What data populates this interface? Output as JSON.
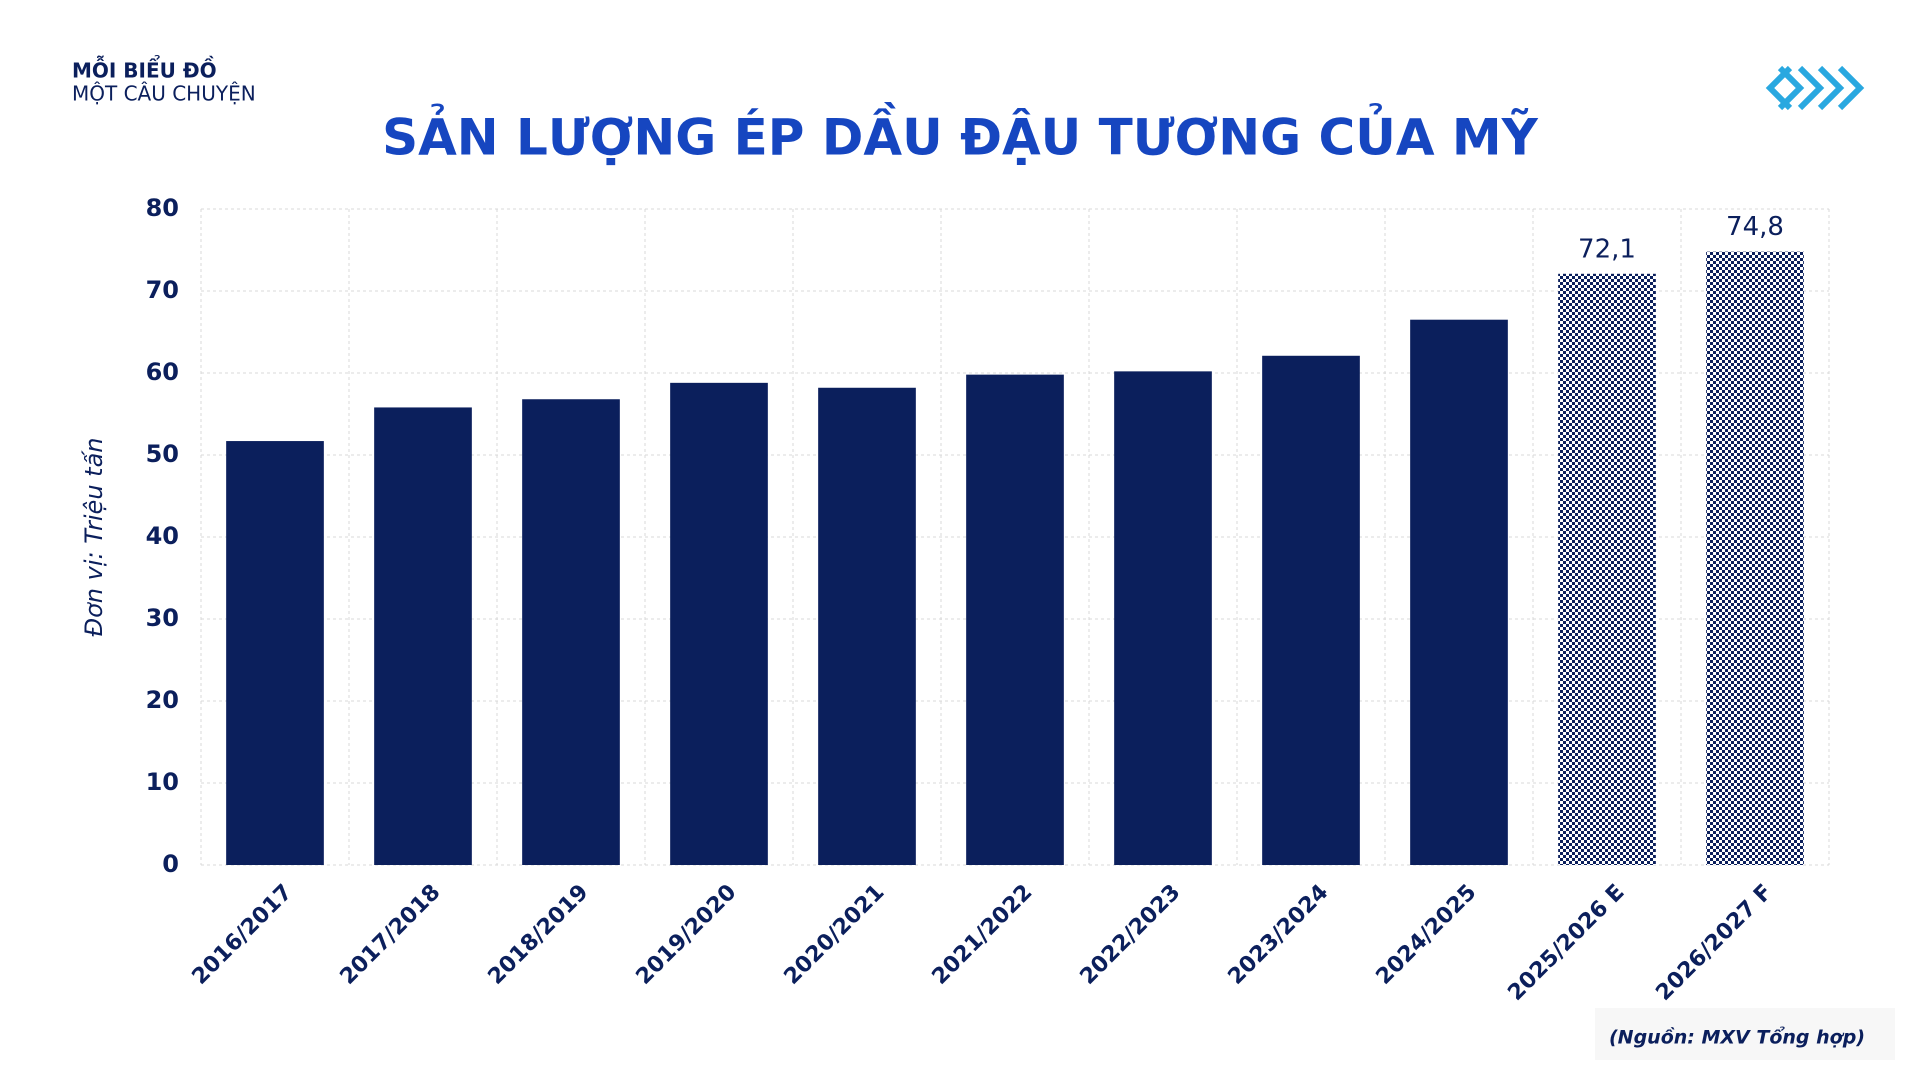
{
  "header": {
    "line1": "MỖI BIỂU ĐỒ",
    "line2": "MỘT CÂU CHUYỆN"
  },
  "chart_data": {
    "type": "bar",
    "title": "SẢN LƯỢNG ÉP DẦU ĐẬU TƯƠNG CỦA MỸ",
    "y_label": "Đơn vị: Triệu tấn",
    "categories": [
      "2016/2017",
      "2017/2018",
      "2018/2019",
      "2019/2020",
      "2020/2021",
      "2021/2022",
      "2022/2023",
      "2023/2024",
      "2024/2025",
      "2025/2026 E",
      "2026/2027 F"
    ],
    "values": [
      51.7,
      55.8,
      56.8,
      58.8,
      58.2,
      59.8,
      60.2,
      62.1,
      66.5,
      72.1,
      74.8
    ],
    "value_labels": [
      null,
      null,
      null,
      null,
      null,
      null,
      null,
      null,
      null,
      "72,1",
      "74,8"
    ],
    "hatched": [
      false,
      false,
      false,
      false,
      false,
      false,
      false,
      false,
      false,
      true,
      true
    ],
    "color": "#0b1f5c",
    "ylim": [
      0,
      80
    ],
    "yticks": [
      0,
      10,
      20,
      30,
      40,
      50,
      60,
      70,
      80
    ],
    "grid": true
  },
  "source": "(Nguồn: MXV Tổng hợp)"
}
